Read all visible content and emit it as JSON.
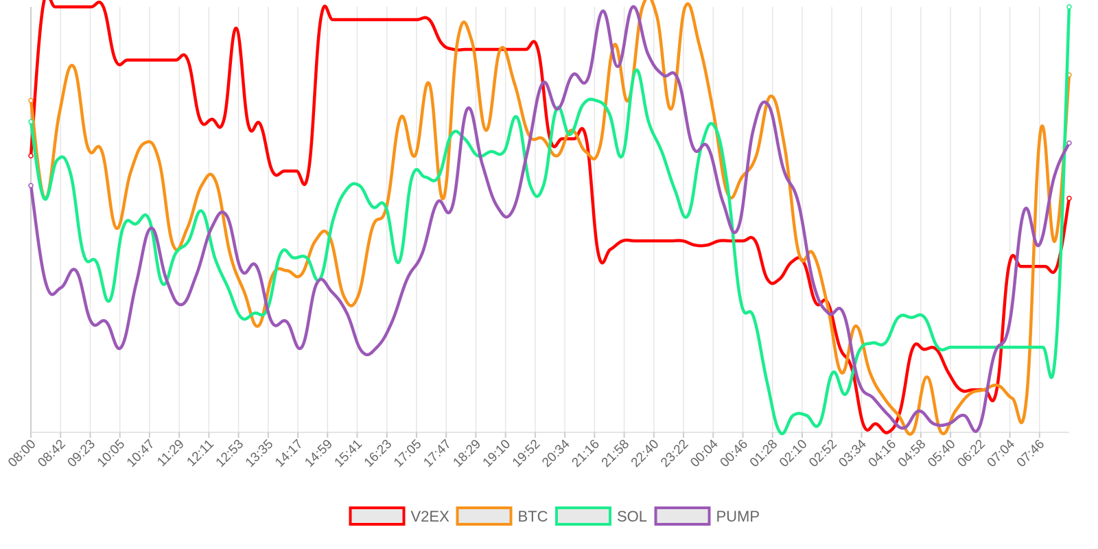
{
  "chart_data": {
    "type": "line",
    "title": "",
    "xlabel": "",
    "ylabel": "",
    "grid": "vertical",
    "legend_placement": "bottom-center",
    "ylim": [
      0,
      100
    ],
    "x_tick_labels": [
      "08:00",
      "08:42",
      "09:23",
      "10:05",
      "10:47",
      "11:29",
      "12:11",
      "12:53",
      "13:35",
      "14:17",
      "14:59",
      "15:41",
      "16:23",
      "17:05",
      "17:47",
      "18:29",
      "19:10",
      "19:52",
      "20:34",
      "21:16",
      "21:58",
      "22:40",
      "23:22",
      "00:04",
      "00:46",
      "01:28",
      "02:10",
      "02:52",
      "03:34",
      "04:16",
      "04:58",
      "05:40",
      "06:22",
      "07:04",
      "07:46"
    ],
    "x_points_per_tick": 2,
    "series": [
      {
        "name": "V2EX",
        "color": "#ff0000",
        "values": [
          65,
          100,
          100,
          100,
          100,
          100,
          100,
          87.5,
          87.5,
          87.5,
          87.5,
          87.5,
          87.5,
          87.5,
          73.6,
          73.6,
          73.6,
          95,
          72.4,
          72.4,
          61.4,
          61.4,
          61.4,
          61.4,
          97,
          97,
          97,
          97,
          97,
          97,
          97,
          97,
          97,
          97,
          91.5,
          90,
          90,
          90,
          90,
          90,
          90,
          90,
          90,
          69,
          69,
          69,
          69,
          42,
          43,
          45,
          45,
          45,
          45,
          45,
          45,
          44,
          44,
          45,
          45,
          45,
          45,
          36,
          36,
          40,
          40,
          30.5,
          30.5,
          20,
          15,
          1.5,
          2,
          0,
          5,
          19.5,
          19.5,
          19.5,
          14,
          10,
          10,
          10,
          10,
          39,
          39,
          39,
          39,
          39,
          55
        ]
      },
      {
        "name": "BTC",
        "color": "#f7931a",
        "values": [
          78,
          55,
          75,
          86,
          67,
          66,
          48,
          61,
          68,
          64,
          44,
          48,
          58,
          59,
          42,
          33,
          25,
          37,
          38,
          37,
          45,
          46,
          32,
          32,
          48,
          53,
          74,
          65,
          82,
          55,
          92,
          92,
          71,
          90,
          82,
          70,
          69,
          65,
          71,
          66,
          67,
          91,
          78,
          100,
          98,
          76,
          100,
          91,
          75,
          56,
          60,
          65,
          79,
          67,
          42,
          42,
          30,
          14,
          25,
          14,
          8,
          4,
          0,
          13,
          0,
          5,
          9,
          10,
          11,
          8,
          8,
          71,
          45,
          84
        ]
      },
      {
        "name": "SOL",
        "color": "#1cec8f",
        "values": [
          73,
          55,
          64,
          61,
          42,
          40,
          31,
          48,
          49,
          50,
          35,
          42,
          45,
          52,
          41,
          34,
          27,
          28,
          29,
          42,
          41,
          41,
          36,
          50,
          57,
          58,
          53,
          53,
          40,
          60,
          60,
          60,
          70,
          69,
          65,
          66,
          66,
          74,
          58,
          58,
          76,
          70,
          77,
          78,
          75,
          65,
          85,
          73,
          66,
          57,
          51,
          67,
          72,
          58,
          31,
          27,
          12,
          0,
          4,
          4,
          2,
          14,
          9,
          19,
          21,
          21,
          27,
          27,
          27,
          20,
          20,
          20,
          20,
          20,
          20,
          20,
          20,
          20,
          20,
          100
        ]
      },
      {
        "name": "PUMP",
        "color": "#9b59b6",
        "values": [
          58,
          35,
          34,
          38,
          26,
          26,
          20,
          35,
          48,
          36,
          30,
          37,
          48,
          51,
          38,
          39,
          26,
          26,
          20,
          35,
          33,
          28,
          19,
          20,
          26,
          36,
          42,
          54,
          53,
          76,
          63,
          53,
          52,
          66,
          82,
          76,
          84,
          83,
          99,
          86,
          100,
          89,
          84,
          83,
          67,
          67,
          54,
          48,
          71,
          77,
          62,
          54,
          35,
          28,
          28,
          12,
          8,
          4,
          1,
          5,
          2,
          2,
          4,
          1,
          18,
          25,
          52,
          44,
          60,
          68
        ]
      }
    ]
  }
}
